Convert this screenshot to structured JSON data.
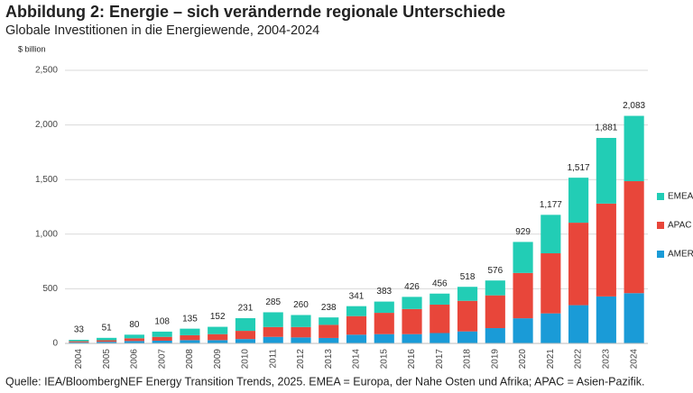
{
  "chart_data": {
    "type": "bar",
    "stacked": true,
    "title": "Abbildung 2: Energie – sich verändernde regionale Unterschiede",
    "subtitle": "Globale Investitionen in die Energiewende, 2004-2024",
    "y_label": "$ billion",
    "source": "Quelle: IEA/BloombergNEF Energy Transition Trends, 2025. EMEA = Europa, der Nahe Osten und Afrika; APAC = Asien-Pazifik.",
    "categories": [
      "2004",
      "2005",
      "2006",
      "2007",
      "2008",
      "2009",
      "2010",
      "2011",
      "2012",
      "2013",
      "2014",
      "2015",
      "2016",
      "2017",
      "2018",
      "2019",
      "2020",
      "2021",
      "2022",
      "2023",
      "2024"
    ],
    "series": [
      {
        "name": "AMER",
        "color": "#1a9bd7",
        "values": [
          10,
          15,
          22,
          25,
          30,
          30,
          40,
          60,
          55,
          50,
          80,
          85,
          85,
          95,
          110,
          140,
          230,
          275,
          350,
          430,
          460
        ]
      },
      {
        "name": "APAC",
        "color": "#e8463a",
        "values": [
          10,
          14,
          25,
          35,
          45,
          55,
          75,
          90,
          95,
          120,
          170,
          195,
          230,
          260,
          280,
          300,
          415,
          550,
          755,
          850,
          1025
        ]
      },
      {
        "name": "EMEA",
        "color": "#22cdb5",
        "values": [
          13,
          22,
          33,
          48,
          60,
          67,
          116,
          135,
          110,
          68,
          91,
          103,
          111,
          101,
          128,
          136,
          284,
          352,
          412,
          601,
          598
        ]
      }
    ],
    "totals": {
      "values": [
        33,
        51,
        80,
        108,
        135,
        152,
        231,
        285,
        260,
        238,
        341,
        383,
        426,
        456,
        518,
        576,
        929,
        1177,
        1517,
        1881,
        2083
      ],
      "value_labels": [
        "33",
        "51",
        "80",
        "108",
        "135",
        "152",
        "231",
        "285",
        "260",
        "238",
        "341",
        "383",
        "426",
        "456",
        "518",
        "576",
        "929",
        "1,177",
        "1,517",
        "1,881",
        "2,083"
      ]
    },
    "ylim": [
      0,
      2500
    ],
    "yticks": [
      0,
      500,
      {
        "value": 1000,
        "label": "1,000"
      },
      {
        "value": 1500,
        "label": "1,500"
      },
      {
        "value": 2000,
        "label": "2,000"
      },
      {
        "value": 2500,
        "label": "2,500"
      }
    ],
    "grid": true,
    "legend": "right"
  }
}
